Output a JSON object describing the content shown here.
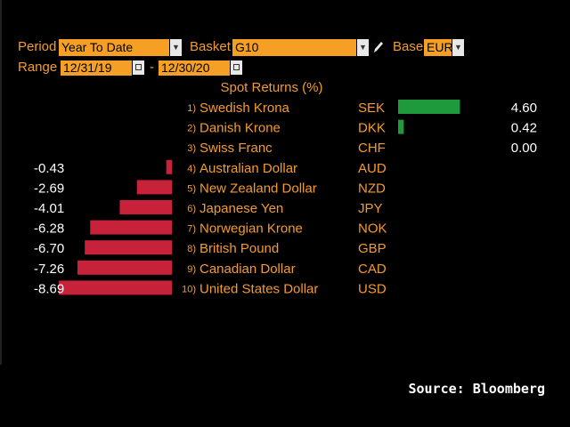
{
  "controls": {
    "period_label": "Period",
    "period_value": "Year To Date",
    "basket_label": "Basket",
    "basket_value": "G10",
    "base_label": "Base",
    "base_value": "EUR",
    "range_label": "Range",
    "range_start": "12/31/19",
    "range_end": "12/30/20",
    "range_sep": "-"
  },
  "source": "Source: Bloomberg",
  "colors": {
    "accent": "#f39c2d",
    "positive": "#1e9a3c",
    "negative": "#c8213a"
  },
  "chart_data": {
    "type": "bar",
    "title": "Spot Returns (%)",
    "categories": [
      "Swedish Krona",
      "Danish Krone",
      "Swiss Franc",
      "Australian Dollar",
      "New Zealand Dollar",
      "Japanese Yen",
      "Norwegian Krone",
      "British Pound",
      "Canadian Dollar",
      "United States Dollar"
    ],
    "ranks": [
      "1)",
      "2)",
      "3)",
      "4)",
      "5)",
      "6)",
      "7)",
      "8)",
      "9)",
      "10)"
    ],
    "codes": [
      "SEK",
      "DKK",
      "CHF",
      "AUD",
      "NZD",
      "JPY",
      "NOK",
      "GBP",
      "CAD",
      "USD"
    ],
    "values": [
      4.6,
      0.42,
      0.0,
      -0.43,
      -2.69,
      -4.01,
      -6.28,
      -6.7,
      -7.26,
      -8.69
    ],
    "value_labels": [
      "4.60",
      "0.42",
      "0.00",
      "-0.43",
      "-2.69",
      "-4.01",
      "-6.28",
      "-6.70",
      "-7.26",
      "-8.69"
    ]
  }
}
